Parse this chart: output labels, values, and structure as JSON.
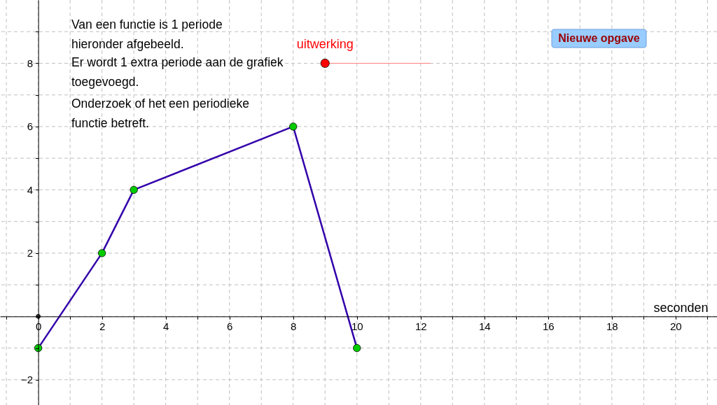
{
  "chart_data": {
    "type": "line",
    "annotations": [
      "Van een functie is 1 periode\nhieronder afgebeeld.",
      "Er wordt 1 extra periode aan de grafiek\ntoegevoegd.",
      "Onderzoek of het een periodieke\nfunctie betreft.",
      "Nieuwe opgave"
    ],
    "xlabel": "seconden",
    "series": [
      {
        "color": "#3300aa",
        "line_style": "solid",
        "x": [
          0,
          2,
          3,
          8,
          10
        ],
        "values": [
          -1,
          2,
          4,
          6,
          -1
        ]
      },
      {
        "type": "scatter",
        "color": "#00cc00",
        "marker": "circle",
        "x": [
          0,
          2,
          3,
          8,
          10
        ],
        "values": [
          -1,
          2,
          4,
          6,
          -1
        ]
      },
      {
        "type": "scatter",
        "color": "#404040",
        "marker": "circle",
        "x": [
          0
        ],
        "values": [
          0
        ]
      },
      {
        "color": "#ff8080",
        "line_style": "solid",
        "x": [
          9,
          12.3
        ],
        "values": [
          8,
          8
        ]
      },
      {
        "type": "scatter",
        "name": "uitwerking",
        "color": "#ff0000",
        "marker": "circle",
        "x": [
          9
        ],
        "values": [
          8
        ]
      }
    ],
    "xlim": [
      -1.2,
      21.3
    ],
    "ylim": [
      -2.8,
      10
    ],
    "xticks": [
      {
        "value": -1,
        "label": null
      },
      0,
      {
        "value": 1,
        "label": null
      },
      2,
      {
        "value": 3,
        "label": null
      },
      4,
      {
        "value": 5,
        "label": null
      },
      6,
      {
        "value": 7,
        "label": null
      },
      8,
      {
        "value": 9,
        "label": null
      },
      10,
      {
        "value": 11,
        "label": null
      },
      12,
      {
        "value": 13,
        "label": null
      },
      14,
      {
        "value": 15,
        "label": null
      },
      16,
      {
        "value": 17,
        "label": null
      },
      18,
      {
        "value": 19,
        "label": null
      },
      20,
      {
        "value": 21,
        "label": null
      }
    ],
    "yticks": [
      {
        "value": -2,
        "label": "−2"
      },
      {
        "value": -1,
        "label": null
      },
      {
        "value": 0,
        "label": null
      },
      {
        "value": 1,
        "label": null
      },
      2,
      {
        "value": 3,
        "label": null
      },
      4,
      {
        "value": 5,
        "label": null
      },
      6,
      {
        "value": 7,
        "label": null
      },
      8,
      {
        "value": 9,
        "label": null
      }
    ],
    "grid": true
  }
}
